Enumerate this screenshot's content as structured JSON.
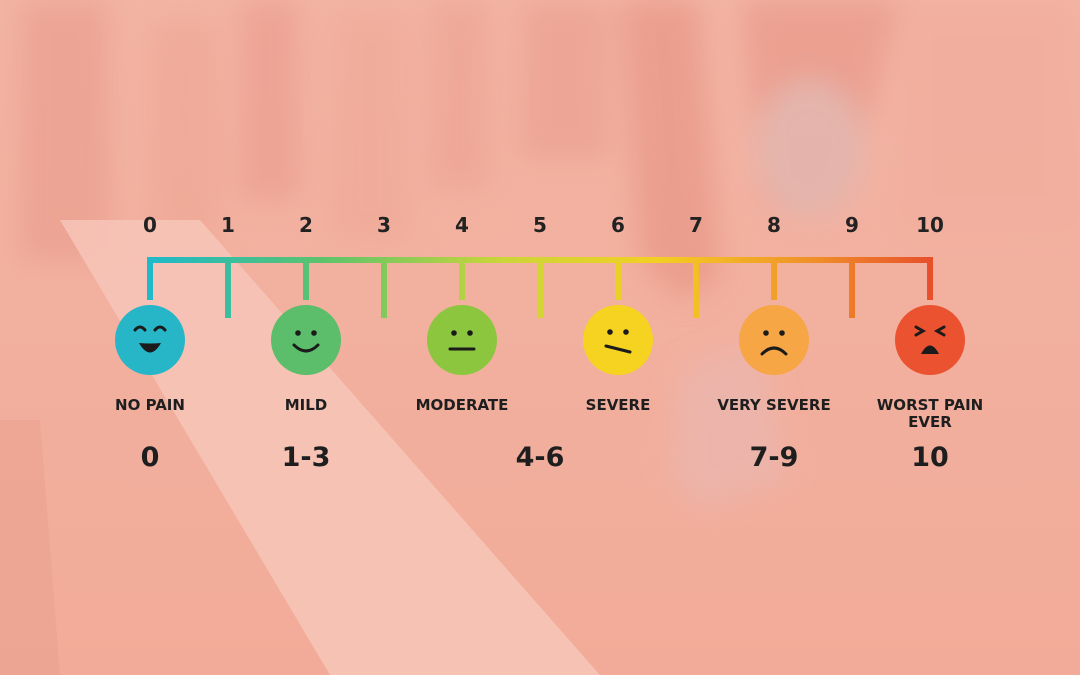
{
  "scale": {
    "ticks": [
      "0",
      "1",
      "2",
      "3",
      "4",
      "5",
      "6",
      "7",
      "8",
      "9",
      "10"
    ],
    "gradient": [
      "#1fb9c9",
      "#5cc36c",
      "#cbd53a",
      "#f3cf23",
      "#f0902a",
      "#e8502c"
    ],
    "levels": [
      {
        "tick": 0,
        "label": [
          "NO PAIN"
        ],
        "face": "laughing-face-icon",
        "color": "#27b6c8",
        "range": "0"
      },
      {
        "tick": 2,
        "label": [
          "MILD"
        ],
        "face": "smiling-face-icon",
        "color": "#5cbd6a",
        "range": "1-3"
      },
      {
        "tick": 4,
        "label": [
          "MODERATE"
        ],
        "face": "neutral-face-icon",
        "color": "#8cc63f",
        "range": ""
      },
      {
        "tick": 6,
        "label": [
          "SEVERE"
        ],
        "face": "uneasy-face-icon",
        "color": "#f5d320",
        "range": ""
      },
      {
        "tick": 8,
        "label": [
          "VERY SEVERE"
        ],
        "face": "frowning-face-icon",
        "color": "#f6a645",
        "range": ""
      },
      {
        "tick": 10,
        "label": [
          "WORST PAIN",
          "EVER"
        ],
        "face": "crying-face-icon",
        "color": "#ea5230",
        "range": "10"
      }
    ],
    "range_labels": [
      {
        "at": 0,
        "text": "0"
      },
      {
        "at": 2,
        "text": "1-3"
      },
      {
        "at": 5,
        "text": "4-6"
      },
      {
        "at": 8,
        "text": "7-9"
      },
      {
        "at": 10,
        "text": "10"
      }
    ]
  }
}
